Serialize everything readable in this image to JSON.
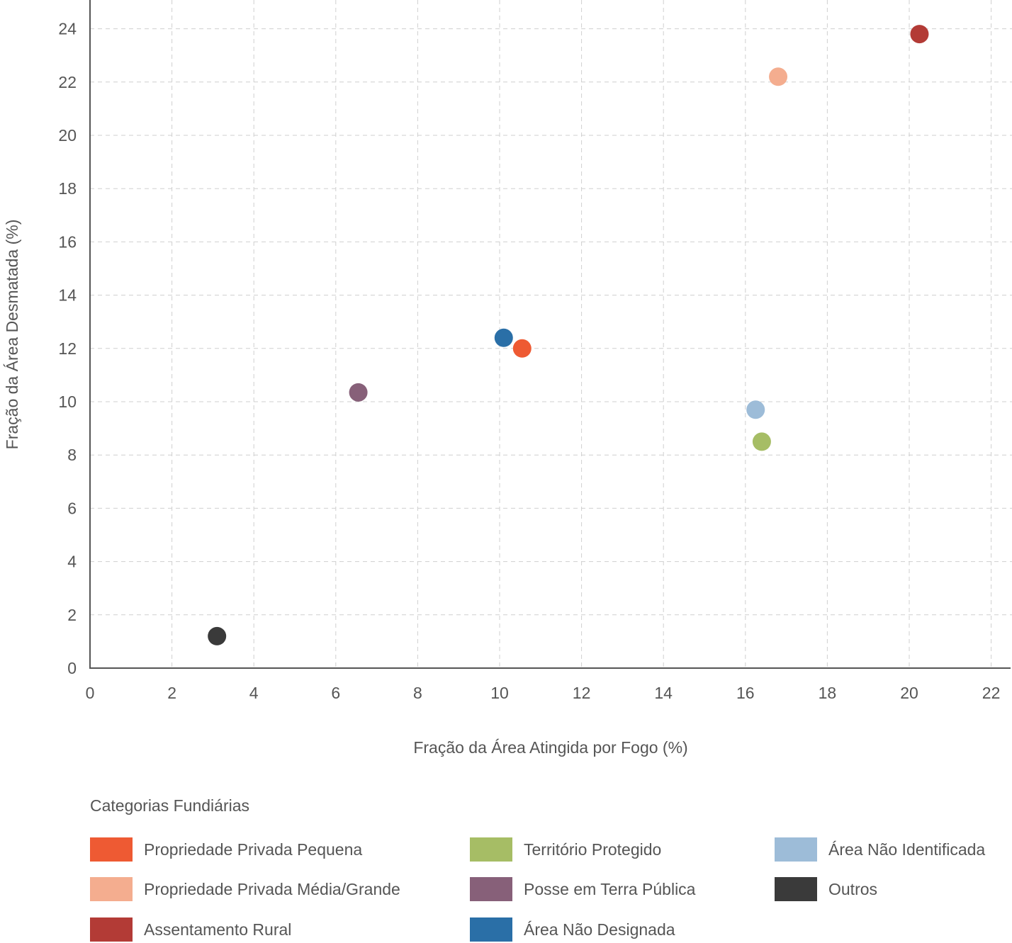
{
  "chart_data": {
    "type": "scatter",
    "title": "",
    "xlabel": "Fração da Área Atingida por Fogo (%)",
    "ylabel": "Fração da Área Desmatada (%)",
    "xlim": [
      0,
      22.5
    ],
    "ylim": [
      0,
      25
    ],
    "xticks": [
      "0",
      "2",
      "4",
      "6",
      "8",
      "10",
      "12",
      "14",
      "16",
      "18",
      "20",
      "22"
    ],
    "yticks": [
      "0",
      "2",
      "4",
      "6",
      "8",
      "10",
      "12",
      "14",
      "16",
      "18",
      "20",
      "22",
      "24"
    ],
    "grid": true,
    "legend_title": "Categorias Fundiárias",
    "legend_position": "bottom",
    "series": [
      {
        "name": "Propriedade Privada Pequena",
        "color": "#ee5a33",
        "x": 10.55,
        "y": 12.0
      },
      {
        "name": "Propriedade Privada Média/Grande",
        "color": "#f4ad8f",
        "x": 16.8,
        "y": 22.2
      },
      {
        "name": "Assentamento Rural",
        "color": "#b33b36",
        "x": 20.25,
        "y": 23.8
      },
      {
        "name": "Território Protegido",
        "color": "#a6bd65",
        "x": 16.4,
        "y": 8.5
      },
      {
        "name": "Posse em Terra Pública",
        "color": "#876079",
        "x": 6.55,
        "y": 10.35
      },
      {
        "name": "Área Não Designada",
        "color": "#2a6fa7",
        "x": 10.1,
        "y": 12.4
      },
      {
        "name": "Área Não Identificada",
        "color": "#9dbcd8",
        "x": 16.25,
        "y": 9.7
      },
      {
        "name": "Outros",
        "color": "#3a3a3a",
        "x": 3.1,
        "y": 1.2
      }
    ]
  }
}
